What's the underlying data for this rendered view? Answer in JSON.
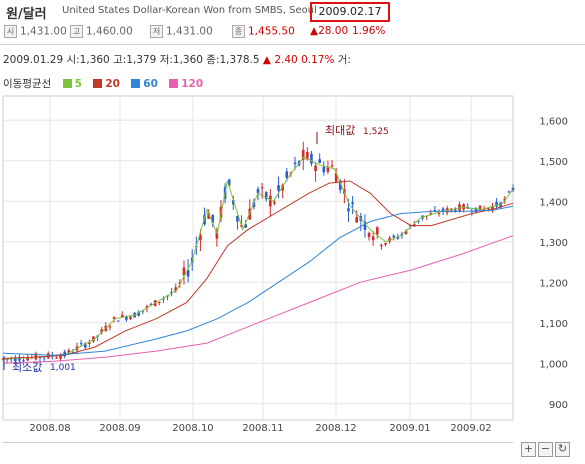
{
  "header": {
    "title": "원/달러",
    "subtitle": "United States Dollar-Korean Won from SMBS, Seoul",
    "date": "2009.02.17"
  },
  "quote": {
    "open": "1,431.00",
    "high": "1,460.00",
    "low": "1,431.00",
    "close": "1,455.50",
    "change": "▲28.00",
    "change_pct": "1.96%"
  },
  "info": {
    "date": "2009.01.29",
    "open_label": "시:",
    "open": "1,360",
    "high_label": "고:",
    "high": "1,379",
    "low_label": "저:",
    "low": "1,360",
    "close_label": "종:",
    "close": "1,378.5",
    "change": "▲ 2.40",
    "pct": "0.17%",
    "vol_label": "거:"
  },
  "legend": {
    "title": "이동평균선",
    "items": [
      {
        "label": "5",
        "color": "#7cc33c"
      },
      {
        "label": "20",
        "color": "#c0392b"
      },
      {
        "label": "60",
        "color": "#2f86d6"
      },
      {
        "label": "120",
        "color": "#e85fb0"
      }
    ]
  },
  "annotations": {
    "max_label": "최대값",
    "max_value": "1,525",
    "min_label": "최소값",
    "min_value": "1,001"
  },
  "controls": {
    "zoom_in": "+",
    "zoom_out": "−",
    "reset": "↻"
  },
  "chart_data": {
    "type": "line",
    "title": "원/달러",
    "ylim": [
      860,
      1660
    ],
    "y_ticks": [
      "900",
      "1,000",
      "1,100",
      "1,200",
      "1,300",
      "1,400",
      "1,500",
      "1,600"
    ],
    "x_ticks": [
      "2008.08",
      "2008.09",
      "2008.10",
      "2008.11",
      "2008.12",
      "2009.01",
      "2009.02"
    ],
    "grid": true,
    "series": [
      {
        "name": "5",
        "color": "#7cc33c",
        "x": [
          0,
          0.06,
          0.12,
          0.18,
          0.22,
          0.26,
          0.3,
          0.34,
          0.37,
          0.4,
          0.42,
          0.44,
          0.47,
          0.5,
          0.53,
          0.56,
          0.59,
          0.62,
          0.65,
          0.68,
          0.72,
          0.75,
          0.78,
          0.82,
          0.86,
          0.9,
          0.94,
          0.98,
          1.0
        ],
        "values": [
          1010,
          1015,
          1020,
          1060,
          1110,
          1120,
          1150,
          1180,
          1250,
          1380,
          1320,
          1450,
          1330,
          1420,
          1400,
          1460,
          1510,
          1490,
          1480,
          1390,
          1330,
          1300,
          1315,
          1360,
          1375,
          1385,
          1380,
          1395,
          1430
        ]
      },
      {
        "name": "20",
        "color": "#c0392b",
        "x": [
          0,
          0.06,
          0.12,
          0.18,
          0.24,
          0.3,
          0.36,
          0.4,
          0.44,
          0.48,
          0.52,
          0.56,
          0.6,
          0.64,
          0.68,
          0.72,
          0.76,
          0.8,
          0.84,
          0.88,
          0.92,
          0.96,
          1.0
        ],
        "values": [
          1012,
          1015,
          1020,
          1040,
          1080,
          1110,
          1150,
          1210,
          1290,
          1330,
          1360,
          1390,
          1420,
          1445,
          1450,
          1420,
          1370,
          1340,
          1340,
          1355,
          1370,
          1380,
          1395
        ]
      },
      {
        "name": "60",
        "color": "#2f86d6",
        "x": [
          0,
          0.1,
          0.2,
          0.3,
          0.36,
          0.42,
          0.48,
          0.54,
          0.6,
          0.66,
          0.72,
          0.78,
          0.84,
          0.9,
          0.96,
          1.0
        ],
        "values": [
          1025,
          1020,
          1030,
          1060,
          1080,
          1110,
          1150,
          1200,
          1250,
          1310,
          1350,
          1370,
          1375,
          1375,
          1378,
          1388
        ]
      },
      {
        "name": "120",
        "color": "#e85fb0",
        "x": [
          0,
          0.1,
          0.2,
          0.3,
          0.4,
          0.5,
          0.6,
          0.7,
          0.8,
          0.9,
          1.0
        ],
        "values": [
          1000,
          1005,
          1015,
          1030,
          1050,
          1100,
          1150,
          1200,
          1230,
          1270,
          1315
        ]
      }
    ]
  }
}
